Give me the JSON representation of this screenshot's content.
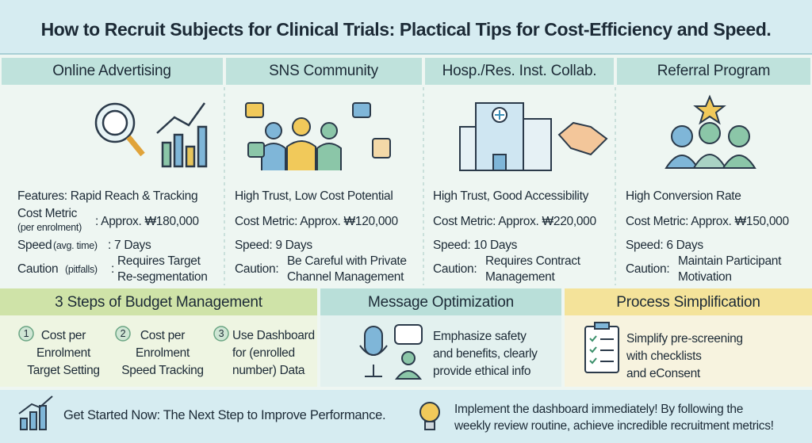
{
  "header": {
    "title": "How to Recruit Subjects for Clinical Trials: Plactical Tips for Cost-Efficiency and Speed."
  },
  "columns": [
    {
      "title": "Online Advertising",
      "features": "Features: Rapid Reach & Tracking",
      "cost": {
        "label": "Cost Metric",
        "note": "(per enrolment)",
        "value": ": Approx. ₩180,000"
      },
      "speed": {
        "label": "Speed",
        "note": "(avg. time)",
        "value": ": 7 Days"
      },
      "caution": {
        "label": "Caution",
        "note": "(pitfalls)",
        "colon": ":",
        "lines": [
          "Requires Target",
          "Re-segmentation"
        ]
      }
    },
    {
      "title": "SNS Community",
      "features": "High Trust, Low Cost Potential",
      "cost": "Cost Metric: Approx. ₩120,000",
      "speed": "Speed: 9 Days",
      "caution": {
        "label": "Caution:",
        "lines": [
          "Be Careful with Private",
          "Channel Management"
        ]
      }
    },
    {
      "title": "Hosp./Res. Inst. Collab.",
      "features": "High Trust, Good Accessibility",
      "cost": "Cost Metric: Approx. ₩220,000",
      "speed": "Speed: 10 Days",
      "caution": {
        "label": "Caution:",
        "lines": [
          "Requires Contract",
          "Management"
        ]
      }
    },
    {
      "title": "Referral Program",
      "features": "High Conversion Rate",
      "cost": "Cost Metric: Approx. ₩150,000",
      "speed": "Speed: 6 Days",
      "caution": {
        "label": "Caution:",
        "lines": [
          "Maintain Participant",
          "Motivation"
        ]
      }
    }
  ],
  "budget": {
    "title": "3 Steps of Budget Management",
    "steps": [
      {
        "number": "1",
        "lines": [
          "Cost per",
          "Enrolment",
          "Target Setting"
        ]
      },
      {
        "number": "2",
        "lines": [
          "Cost per",
          "Enrolment",
          "Speed Tracking"
        ]
      },
      {
        "number": "3",
        "lines": [
          "Use Dashboard",
          "for (enrolled",
          "number) Data"
        ]
      }
    ]
  },
  "message": {
    "title": "Message Optimization",
    "lines": [
      "Emphasize safety",
      "and benefits, clearly",
      "provide ethical info"
    ]
  },
  "process": {
    "title": "Process Simplification",
    "lines": [
      "Simplify pre-screening",
      "with checklists",
      "and eConsent"
    ]
  },
  "footer": {
    "cta": "Get Started Now: The Next Step to Improve Performance.",
    "lines": [
      "Implement the dashboard immediately! By following the",
      "weekly review routine, achieve incredible recruitment metrics!"
    ]
  }
}
